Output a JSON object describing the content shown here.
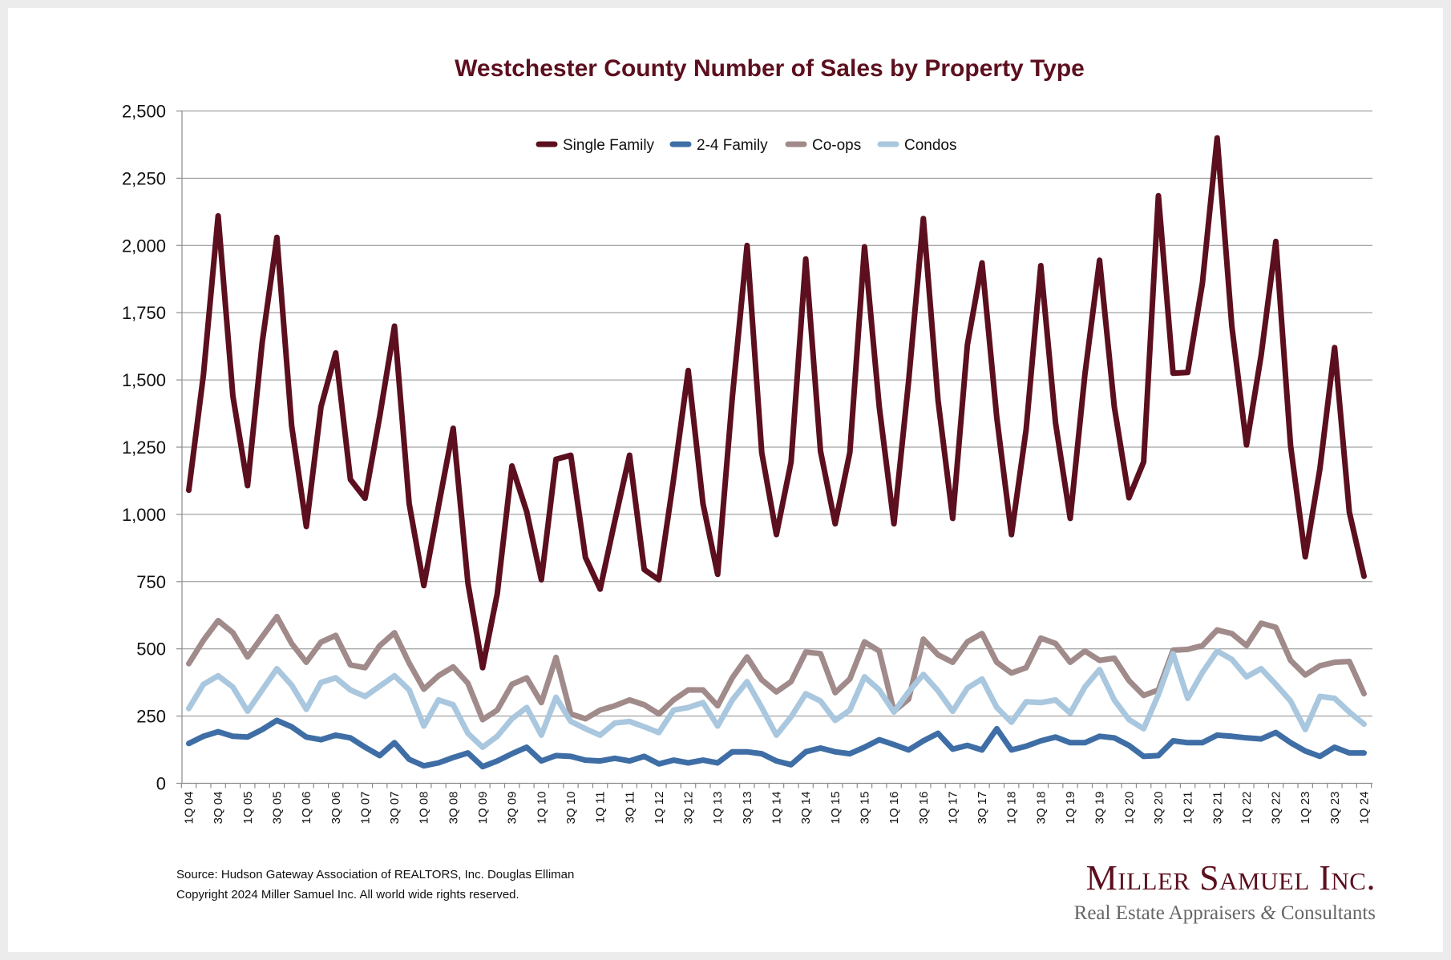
{
  "chart_data": {
    "type": "line",
    "title": "Westchester County Number of Sales by Property Type",
    "xlabel": "",
    "ylabel": "",
    "ylim": [
      0,
      2500
    ],
    "yticks": [
      0,
      250,
      500,
      750,
      1000,
      1250,
      1500,
      1750,
      2000,
      2250,
      2500
    ],
    "ytick_labels": [
      "0",
      "250",
      "500",
      "750",
      "1,000",
      "1,250",
      "1,500",
      "1,750",
      "2,000",
      "2,250",
      "2,500"
    ],
    "grid": true,
    "legend_position": "top-center",
    "x": [
      "1Q 04",
      "2Q 04",
      "3Q 04",
      "4Q 04",
      "1Q 05",
      "2Q 05",
      "3Q 05",
      "4Q 05",
      "1Q 06",
      "2Q 06",
      "3Q 06",
      "4Q 06",
      "1Q 07",
      "2Q 07",
      "3Q 07",
      "4Q 07",
      "1Q 08",
      "2Q 08",
      "3Q 08",
      "4Q 08",
      "1Q 09",
      "2Q 09",
      "3Q 09",
      "4Q 09",
      "1Q 10",
      "2Q 10",
      "3Q 10",
      "4Q 10",
      "1Q 11",
      "2Q 11",
      "3Q 11",
      "4Q 11",
      "1Q 12",
      "2Q 12",
      "3Q 12",
      "4Q 12",
      "1Q 13",
      "2Q 13",
      "3Q 13",
      "4Q 13",
      "1Q 14",
      "2Q 14",
      "3Q 14",
      "4Q 14",
      "1Q 15",
      "2Q 15",
      "3Q 15",
      "4Q 15",
      "1Q 16",
      "2Q 16",
      "3Q 16",
      "4Q 16",
      "1Q 17",
      "2Q 17",
      "3Q 17",
      "4Q 17",
      "1Q 18",
      "2Q 18",
      "3Q 18",
      "4Q 18",
      "1Q 19",
      "2Q 19",
      "3Q 19",
      "4Q 19",
      "1Q 20",
      "2Q 20",
      "3Q 20",
      "4Q 20",
      "1Q 21",
      "2Q 21",
      "3Q 21",
      "4Q 21",
      "1Q 22",
      "2Q 22",
      "3Q 22",
      "4Q 22",
      "1Q 23",
      "2Q 23",
      "3Q 23",
      "4Q 23",
      "1Q 24"
    ],
    "xtick_labels_shown_every": 2,
    "series": [
      {
        "name": "Single Family",
        "color": "#5c0f1e",
        "values": [
          1090,
          1520,
          2110,
          1440,
          1107,
          1640,
          2030,
          1330,
          955,
          1400,
          1600,
          1130,
          1060,
          1365,
          1700,
          1040,
          735,
          1030,
          1320,
          745,
          430,
          705,
          1180,
          1010,
          757,
          1205,
          1220,
          840,
          722,
          975,
          1220,
          795,
          757,
          1130,
          1535,
          1040,
          777,
          1435,
          2000,
          1230,
          925,
          1195,
          1950,
          1235,
          965,
          1230,
          1995,
          1400,
          965,
          1495,
          2100,
          1425,
          985,
          1630,
          1935,
          1360,
          925,
          1315,
          1925,
          1340,
          985,
          1520,
          1945,
          1400,
          1062,
          1195,
          2185,
          1525,
          1528,
          1860,
          2400,
          1700,
          1258,
          1592,
          2015,
          1255,
          842,
          1170,
          1620,
          1008,
          770
        ]
      },
      {
        "name": "2-4 Family",
        "color": "#3e6ea5",
        "values": [
          148,
          175,
          192,
          175,
          172,
          200,
          234,
          210,
          172,
          162,
          179,
          169,
          134,
          103,
          151,
          89,
          65,
          76,
          96,
          113,
          62,
          83,
          110,
          134,
          83,
          103,
          100,
          86,
          83,
          93,
          83,
          100,
          72,
          86,
          76,
          86,
          76,
          117,
          117,
          110,
          83,
          69,
          117,
          131,
          117,
          110,
          134,
          162,
          144,
          124,
          158,
          186,
          127,
          141,
          124,
          203,
          124,
          138,
          158,
          172,
          151,
          151,
          175,
          169,
          141,
          100,
          103,
          158,
          151,
          151,
          179,
          175,
          169,
          165,
          189,
          151,
          120,
          100,
          134,
          113,
          113
        ]
      },
      {
        "name": "Co-ops",
        "color": "#a08a8a",
        "values": [
          445,
          532,
          605,
          560,
          470,
          545,
          620,
          520,
          450,
          525,
          550,
          440,
          430,
          512,
          560,
          447,
          350,
          400,
          433,
          372,
          237,
          272,
          368,
          392,
          300,
          468,
          258,
          240,
          272,
          288,
          310,
          292,
          258,
          310,
          347,
          347,
          288,
          392,
          470,
          385,
          340,
          378,
          488,
          482,
          337,
          388,
          526,
          492,
          268,
          313,
          536,
          478,
          450,
          526,
          557,
          450,
          410,
          430,
          540,
          520,
          450,
          492,
          457,
          465,
          382,
          327,
          347,
          495,
          498,
          512,
          570,
          557,
          512,
          595,
          580,
          457,
          403,
          437,
          450,
          453,
          333
        ]
      },
      {
        "name": "Condos",
        "color": "#a9c7de",
        "values": [
          278,
          368,
          400,
          358,
          268,
          347,
          426,
          365,
          275,
          375,
          392,
          347,
          323,
          361,
          400,
          347,
          213,
          310,
          292,
          186,
          134,
          175,
          240,
          282,
          179,
          320,
          230,
          203,
          179,
          224,
          230,
          210,
          189,
          272,
          282,
          300,
          213,
          310,
          378,
          282,
          179,
          247,
          333,
          306,
          234,
          272,
          396,
          347,
          265,
          340,
          405,
          344,
          268,
          354,
          388,
          282,
          227,
          303,
          300,
          310,
          261,
          358,
          423,
          310,
          237,
          203,
          330,
          482,
          316,
          412,
          492,
          461,
          396,
          426,
          368,
          306,
          200,
          323,
          316,
          265,
          220
        ]
      }
    ]
  },
  "footer": {
    "source": "Source: Hudson Gateway Association of REALTORS, Inc. Douglas Elliman",
    "copyright": "Copyright 2024 Miller Samuel Inc.  All world wide rights reserved."
  },
  "logo": {
    "name": "Miller Samuel Inc.",
    "tagline_part1": "Real Estate Appraisers ",
    "tagline_amp": "&",
    "tagline_part2": " Consultants"
  }
}
